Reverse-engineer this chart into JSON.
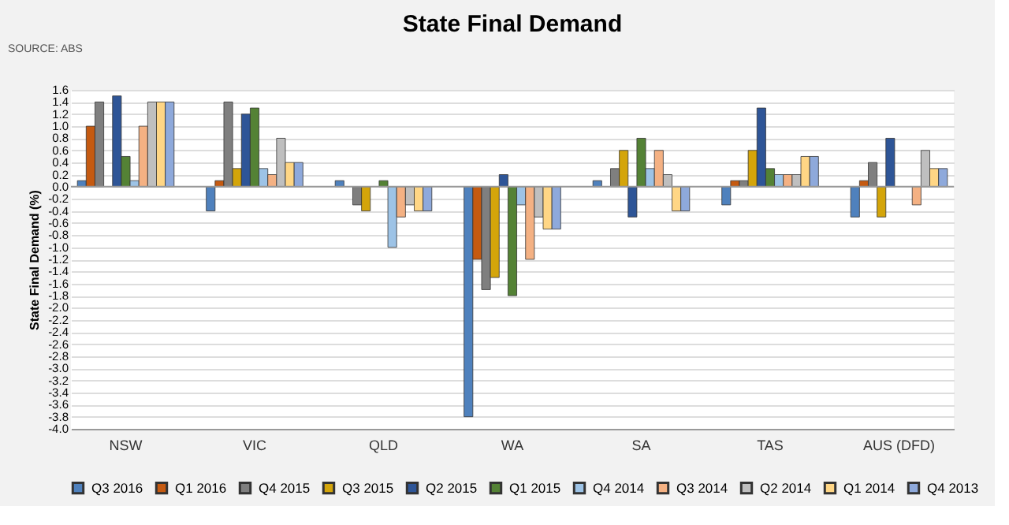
{
  "chart_data": {
    "type": "bar",
    "title": "State Final Demand",
    "ylabel": "State Final Demand (%)",
    "annotations": [
      "SOURCE: ABS"
    ],
    "categories": [
      "NSW",
      "VIC",
      "QLD",
      "WA",
      "SA",
      "TAS",
      "AUS (DFD)"
    ],
    "series": [
      {
        "name": "Q3 2016",
        "color": "#4f81bd",
        "values": [
          0.1,
          -0.4,
          0.1,
          -3.8,
          0.1,
          -0.3,
          -0.5
        ]
      },
      {
        "name": "Q1 2016",
        "color": "#c55a11",
        "values": [
          1.0,
          0.1,
          null,
          -1.2,
          null,
          0.1,
          0.1
        ]
      },
      {
        "name": "Q4 2015",
        "color": "#7f7f7f",
        "values": [
          1.4,
          1.4,
          -0.3,
          -1.7,
          0.3,
          0.1,
          0.4
        ]
      },
      {
        "name": "Q3 2015",
        "color": "#d4a50a",
        "values": [
          null,
          0.3,
          -0.4,
          -1.5,
          0.6,
          0.6,
          -0.5
        ]
      },
      {
        "name": "Q2 2015",
        "color": "#2e5597",
        "values": [
          1.5,
          1.2,
          null,
          0.2,
          -0.5,
          1.3,
          0.8
        ]
      },
      {
        "name": "Q1 2015",
        "color": "#548235",
        "values": [
          0.5,
          1.3,
          0.1,
          -1.8,
          0.8,
          0.3,
          null
        ]
      },
      {
        "name": "Q4 2014",
        "color": "#9dc3e6",
        "values": [
          0.1,
          0.3,
          -1.0,
          -0.3,
          0.3,
          0.2,
          null
        ]
      },
      {
        "name": "Q3 2014",
        "color": "#f4b183",
        "values": [
          1.0,
          0.2,
          -0.5,
          -1.2,
          0.6,
          0.2,
          -0.3
        ]
      },
      {
        "name": "Q2 2014",
        "color": "#bfbfbf",
        "values": [
          1.4,
          0.8,
          -0.3,
          -0.5,
          0.2,
          0.2,
          0.6
        ]
      },
      {
        "name": "Q1 2014",
        "color": "#ffd685",
        "values": [
          1.4,
          0.4,
          -0.4,
          -0.7,
          -0.4,
          0.5,
          0.3
        ]
      },
      {
        "name": "Q4 2013",
        "color": "#8ea9db",
        "values": [
          1.4,
          0.4,
          -0.4,
          -0.7,
          -0.4,
          0.5,
          0.3
        ]
      }
    ],
    "ylim": [
      -4.0,
      1.6
    ],
    "yticks": [
      {
        "value": -4,
        "label": "-4.0"
      },
      -3.8,
      -3.6,
      -3.4,
      -3.2,
      {
        "value": -3,
        "label": "-3.0"
      },
      -2.8,
      -2.6,
      -2.4,
      -2.2,
      {
        "value": -2,
        "label": "-2.0"
      },
      -1.8,
      -1.6,
      -1.4,
      -1.2,
      {
        "value": -1,
        "label": "-1.0"
      },
      -0.8,
      -0.6,
      -0.4,
      -0.2,
      {
        "value": 0,
        "label": "0.0"
      },
      0.2,
      0.4,
      0.6,
      0.8,
      {
        "value": 1,
        "label": "1.0"
      },
      1.2,
      1.4,
      1.6
    ],
    "grid": "y",
    "legend": "bottom"
  }
}
